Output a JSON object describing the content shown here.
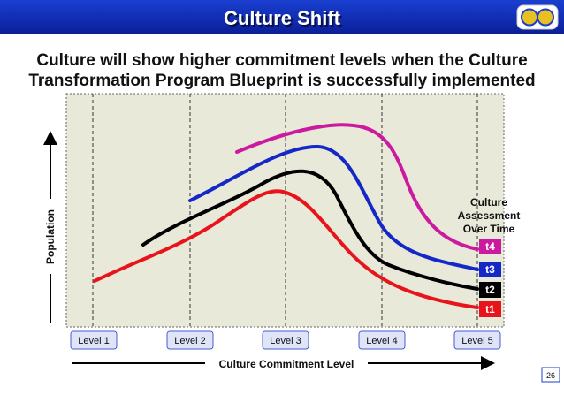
{
  "header": {
    "title": "Culture Shift"
  },
  "subtitle": [
    "Culture will show higher commitment levels when the Culture",
    "Transformation Program Blueprint is successfully implemented"
  ],
  "y_axis_label": "Population",
  "x_axis_label": "Culture Commitment Level",
  "levels": [
    "Level 1",
    "Level 2",
    "Level 3",
    "Level 4",
    "Level 5"
  ],
  "legend_title": [
    "Culture",
    "Assessment",
    "Over Time"
  ],
  "curves": [
    "t4",
    "t3",
    "t2",
    "t1"
  ],
  "page_number": "26"
}
